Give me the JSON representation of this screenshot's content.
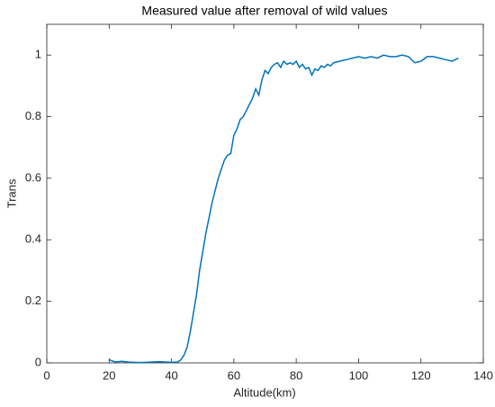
{
  "chart_data": {
    "type": "line",
    "title": "Measured value after removal of wild values",
    "x_label": "Altitude(km)",
    "y_label": "Trans",
    "x": [
      20,
      22,
      24,
      26,
      28,
      30,
      32,
      34,
      36,
      38,
      40,
      42,
      43,
      44,
      45,
      46,
      47,
      48,
      49,
      50,
      51,
      52,
      53,
      54,
      55,
      56,
      57,
      58,
      59,
      60,
      61,
      62,
      63,
      64,
      65,
      66,
      67,
      68,
      69,
      70,
      71,
      72,
      73,
      74,
      75,
      76,
      77,
      78,
      79,
      80,
      81,
      82,
      83,
      84,
      85,
      86,
      87,
      88,
      89,
      90,
      91,
      92,
      94,
      96,
      98,
      100,
      102,
      104,
      106,
      108,
      110,
      112,
      114,
      116,
      118,
      120,
      122,
      124,
      126,
      128,
      130,
      132
    ],
    "series": [
      {
        "name": "Trans",
        "color": "#0072bd",
        "values": [
          0.01,
          0.003,
          0.005,
          0.003,
          0.002,
          0.001,
          0.002,
          0.003,
          0.004,
          0.003,
          0.002,
          0.003,
          0.01,
          0.025,
          0.05,
          0.1,
          0.16,
          0.22,
          0.3,
          0.36,
          0.42,
          0.47,
          0.52,
          0.56,
          0.6,
          0.63,
          0.66,
          0.675,
          0.68,
          0.74,
          0.76,
          0.79,
          0.8,
          0.82,
          0.84,
          0.86,
          0.89,
          0.87,
          0.92,
          0.95,
          0.94,
          0.96,
          0.97,
          0.975,
          0.96,
          0.98,
          0.97,
          0.975,
          0.97,
          0.98,
          0.96,
          0.97,
          0.955,
          0.96,
          0.935,
          0.955,
          0.95,
          0.965,
          0.96,
          0.97,
          0.965,
          0.975,
          0.98,
          0.985,
          0.99,
          0.995,
          0.99,
          0.995,
          0.99,
          1.0,
          0.995,
          0.995,
          1.0,
          0.995,
          0.975,
          0.98,
          0.995,
          0.995,
          0.99,
          0.985,
          0.98,
          0.99
        ]
      }
    ],
    "xlim": [
      0,
      140
    ],
    "xticks": [
      0,
      20,
      40,
      60,
      80,
      100,
      120,
      140
    ],
    "ylim": [
      0,
      1.1
    ],
    "yticks": [
      0,
      0.2,
      0.4,
      0.6,
      0.8,
      1
    ],
    "grid": false
  }
}
